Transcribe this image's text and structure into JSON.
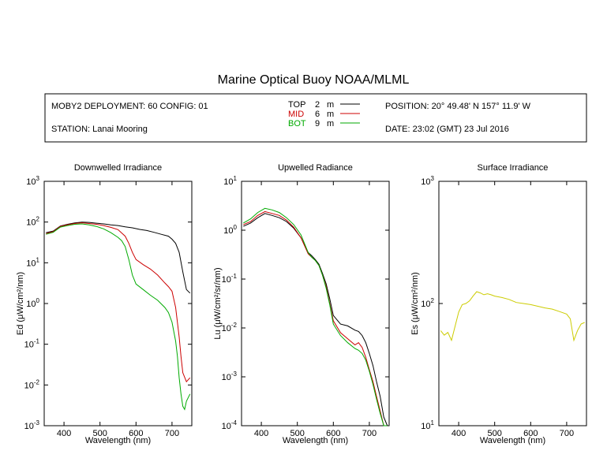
{
  "title": "Marine Optical Buoy NOAA/MLML",
  "header": {
    "deployment": "MOBY2 DEPLOYMENT: 60 CONFIG: 01",
    "station": "STATION: Lanai Mooring",
    "position": "POSITION: 20° 49.48' N   157° 11.9' W",
    "date": "DATE: 23:02 (GMT) 23 Jul 2016",
    "legend": [
      {
        "label": "TOP",
        "depth": "2",
        "unit": "m",
        "color": "#000000"
      },
      {
        "label": "MID",
        "depth": "6",
        "unit": "m",
        "color": "#cc0000"
      },
      {
        "label": "BOT",
        "depth": "9",
        "unit": "m",
        "color": "#00aa00"
      }
    ]
  },
  "chart_data": [
    {
      "type": "line",
      "title": "Downwelled Irradiance",
      "xlabel": "Wavelength (nm)",
      "ylabel": "Ed (μW/cm²/nm)",
      "yscale": "log",
      "xlim": [
        345,
        755
      ],
      "ylim": [
        0.001,
        1000
      ],
      "xticks": [
        400,
        500,
        600,
        700
      ],
      "ytick_exponents": [
        -3,
        -2,
        -1,
        0,
        1,
        2,
        3
      ],
      "series": [
        {
          "name": "TOP",
          "color": "#000000",
          "x": [
            350,
            370,
            390,
            410,
            430,
            450,
            470,
            490,
            510,
            530,
            550,
            570,
            590,
            610,
            630,
            650,
            670,
            690,
            700,
            710,
            720,
            730,
            740,
            750
          ],
          "y": [
            55,
            60,
            80,
            88,
            95,
            100,
            98,
            94,
            90,
            85,
            82,
            76,
            72,
            66,
            62,
            56,
            50,
            45,
            38,
            30,
            18,
            6,
            2.2,
            1.8
          ]
        },
        {
          "name": "MID",
          "color": "#cc0000",
          "x": [
            350,
            370,
            390,
            410,
            430,
            450,
            470,
            490,
            510,
            530,
            550,
            570,
            580,
            590,
            600,
            620,
            640,
            660,
            680,
            690,
            700,
            710,
            720,
            725,
            730,
            740,
            750
          ],
          "y": [
            52,
            58,
            78,
            86,
            92,
            96,
            92,
            88,
            82,
            74,
            65,
            45,
            30,
            18,
            12,
            9,
            7,
            5,
            3.2,
            2.6,
            2,
            0.8,
            0.15,
            0.05,
            0.02,
            0.012,
            0.015
          ]
        },
        {
          "name": "BOT",
          "color": "#00aa00",
          "x": [
            350,
            370,
            390,
            410,
            430,
            450,
            470,
            490,
            510,
            530,
            550,
            560,
            570,
            580,
            590,
            600,
            620,
            640,
            660,
            680,
            690,
            700,
            710,
            715,
            720,
            725,
            730,
            735,
            740,
            750
          ],
          "y": [
            50,
            56,
            75,
            82,
            88,
            90,
            85,
            78,
            68,
            55,
            42,
            35,
            25,
            12,
            5,
            3,
            2.2,
            1.6,
            1.2,
            0.8,
            0.6,
            0.35,
            0.12,
            0.05,
            0.015,
            0.006,
            0.003,
            0.0025,
            0.004,
            0.006
          ]
        }
      ]
    },
    {
      "type": "line",
      "title": "Upwelled Radiance",
      "xlabel": "Wavelength (nm)",
      "ylabel": "Lu (μW/cm²/sr/nm)",
      "yscale": "log",
      "xlim": [
        345,
        755
      ],
      "ylim": [
        0.0001,
        10
      ],
      "xticks": [
        400,
        500,
        600,
        700
      ],
      "ytick_exponents": [
        -4,
        -3,
        -2,
        -1,
        0,
        1
      ],
      "series": [
        {
          "name": "TOP",
          "color": "#000000",
          "x": [
            350,
            370,
            390,
            410,
            430,
            450,
            470,
            490,
            510,
            530,
            540,
            550,
            560,
            570,
            580,
            590,
            600,
            620,
            640,
            660,
            670,
            680,
            690,
            700,
            710,
            720,
            730,
            740,
            750
          ],
          "y": [
            1.2,
            1.4,
            1.8,
            2.2,
            2.0,
            1.8,
            1.5,
            1.1,
            0.7,
            0.35,
            0.3,
            0.25,
            0.2,
            0.13,
            0.08,
            0.04,
            0.018,
            0.012,
            0.011,
            0.009,
            0.0085,
            0.007,
            0.005,
            0.003,
            0.0017,
            0.0008,
            0.0004,
            0.00015,
            0.0001
          ]
        },
        {
          "name": "MID",
          "color": "#cc0000",
          "x": [
            350,
            370,
            390,
            410,
            430,
            450,
            470,
            490,
            510,
            530,
            540,
            550,
            560,
            570,
            580,
            590,
            600,
            620,
            640,
            660,
            670,
            680,
            690,
            700,
            710,
            720,
            730,
            740,
            750
          ],
          "y": [
            1.3,
            1.5,
            2.0,
            2.4,
            2.2,
            2.0,
            1.6,
            1.15,
            0.7,
            0.33,
            0.28,
            0.24,
            0.19,
            0.12,
            0.07,
            0.032,
            0.014,
            0.008,
            0.006,
            0.0045,
            0.005,
            0.004,
            0.0025,
            0.0014,
            0.0008,
            0.0004,
            0.0002,
            0.0001,
            0.0001
          ]
        },
        {
          "name": "BOT",
          "color": "#00aa00",
          "x": [
            350,
            370,
            390,
            410,
            430,
            450,
            470,
            490,
            510,
            530,
            540,
            550,
            560,
            570,
            580,
            590,
            600,
            620,
            640,
            660,
            670,
            680,
            690,
            700,
            710,
            720,
            730,
            740,
            750
          ],
          "y": [
            1.4,
            1.7,
            2.3,
            2.8,
            2.6,
            2.3,
            1.8,
            1.3,
            0.8,
            0.35,
            0.28,
            0.24,
            0.19,
            0.12,
            0.065,
            0.03,
            0.012,
            0.007,
            0.005,
            0.0038,
            0.0035,
            0.003,
            0.0022,
            0.0013,
            0.0007,
            0.00035,
            0.00018,
            0.0001,
            0.0001
          ]
        }
      ]
    },
    {
      "type": "line",
      "title": "Surface Irradiance",
      "xlabel": "Wavelength (nm)",
      "ylabel": "Es (μW/cm²/nm)",
      "yscale": "log",
      "xlim": [
        345,
        755
      ],
      "ylim": [
        10,
        1000
      ],
      "xticks": [
        400,
        500,
        600,
        700
      ],
      "ytick_exponents": [
        1,
        2,
        3
      ],
      "series": [
        {
          "color": "#cccc00",
          "x": [
            350,
            360,
            370,
            380,
            390,
            400,
            410,
            420,
            430,
            440,
            450,
            460,
            470,
            480,
            490,
            500,
            520,
            540,
            560,
            580,
            600,
            620,
            640,
            660,
            680,
            700,
            710,
            720,
            730,
            740,
            750
          ],
          "y": [
            60,
            55,
            58,
            50,
            65,
            85,
            98,
            100,
            105,
            115,
            125,
            122,
            118,
            120,
            118,
            115,
            112,
            108,
            102,
            100,
            98,
            95,
            92,
            90,
            86,
            82,
            75,
            50,
            60,
            68,
            70
          ]
        }
      ]
    }
  ]
}
